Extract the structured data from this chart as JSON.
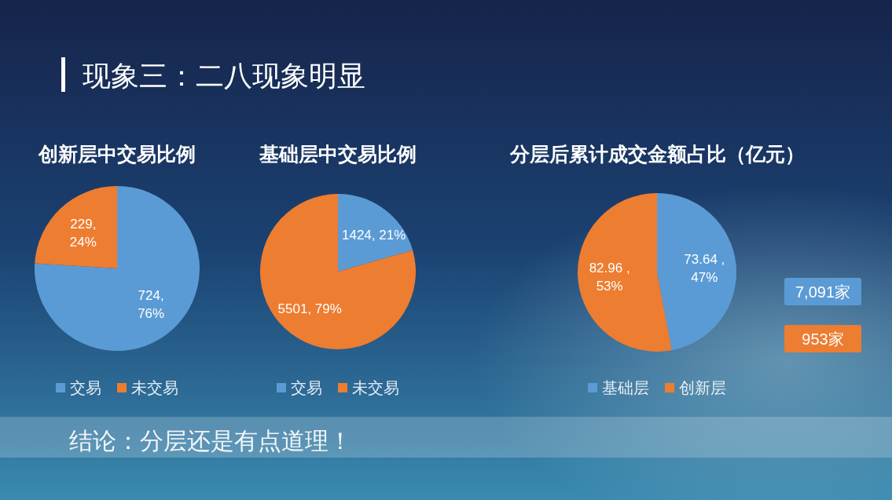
{
  "chart_data": [
    {
      "type": "other",
      "title": "现象三：二八现象明显"
    },
    {
      "type": "pie",
      "title": "创新层中交易比例",
      "categories": [
        "交易",
        "未交易"
      ],
      "values": [
        724,
        229
      ],
      "colors": [
        "#5b9bd5",
        "#ed7d31"
      ],
      "value_labels": [
        "724, 76%",
        "229, 24%"
      ],
      "legend": "bottom"
    },
    {
      "type": "pie",
      "title": "基础层中交易比例",
      "categories": [
        "交易",
        "未交易"
      ],
      "values": [
        1424,
        5501
      ],
      "colors": [
        "#5b9bd5",
        "#ed7d31"
      ],
      "value_labels": [
        "1424, 21%",
        "5501, 79%"
      ],
      "legend": "bottom"
    },
    {
      "type": "pie",
      "title": "分层后累计成交金额占比（亿元）",
      "categories": [
        "基础层",
        "创新层"
      ],
      "values": [
        73.64,
        82.96
      ],
      "colors": [
        "#5b9bd5",
        "#ed7d31"
      ],
      "value_labels": [
        "73.64 , 47%",
        "82.96 , 53%"
      ],
      "legend": "bottom",
      "annotations": [
        "7,091家",
        "953家"
      ]
    },
    {
      "type": "other",
      "annotations": [
        "结论：分层还是有点道理！"
      ]
    }
  ]
}
